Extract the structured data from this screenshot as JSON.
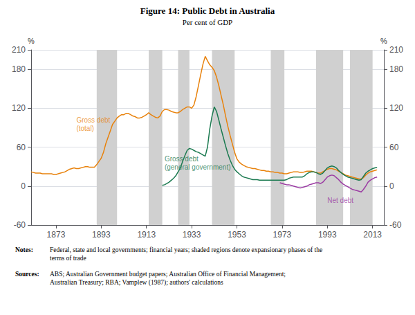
{
  "chart_data": {
    "type": "line",
    "title": "Figure 14: Public Debt in Australia",
    "subtitle": "Per cent of GDP",
    "ylabel": "%",
    "y2label": "%",
    "xlim": [
      1862,
      2018
    ],
    "xticks": [
      1873,
      1893,
      1913,
      1933,
      1953,
      1973,
      1993,
      2013
    ],
    "ylim": [
      -60,
      210
    ],
    "yticks": [
      -60,
      0,
      60,
      120,
      180
    ],
    "y2lim": [
      -60,
      210
    ],
    "y2ticks": [
      -60,
      0,
      60,
      120,
      180
    ],
    "grid": true,
    "shaded_regions": {
      "color": "#D0D0D0",
      "ranges": [
        [
          1891,
          1900
        ],
        [
          1914,
          1920
        ],
        [
          1927,
          1932
        ],
        [
          1942,
          1952
        ],
        [
          1968,
          1974
        ],
        [
          1988,
          2000
        ],
        [
          2003,
          2013
        ]
      ]
    },
    "series": [
      {
        "color": "#E8820C",
        "x": [
          1862,
          1863,
          1864,
          1865,
          1866,
          1867,
          1868,
          1869,
          1870,
          1871,
          1872,
          1873,
          1874,
          1875,
          1876,
          1877,
          1878,
          1879,
          1880,
          1881,
          1882,
          1883,
          1884,
          1885,
          1886,
          1887,
          1888,
          1889,
          1890,
          1891,
          1892,
          1893,
          1894,
          1895,
          1896,
          1897,
          1898,
          1899,
          1900,
          1901,
          1902,
          1903,
          1904,
          1905,
          1906,
          1907,
          1908,
          1909,
          1910,
          1911,
          1912,
          1913,
          1914,
          1915,
          1916,
          1917,
          1918,
          1919,
          1920,
          1921,
          1922,
          1923,
          1924,
          1925,
          1926,
          1927,
          1928,
          1929,
          1930,
          1931,
          1932,
          1933,
          1934,
          1935,
          1936,
          1937,
          1938,
          1939,
          1940,
          1941,
          1942,
          1943,
          1944,
          1945,
          1946,
          1947,
          1948,
          1949,
          1950,
          1951,
          1952,
          1953,
          1954,
          1955,
          1956,
          1957,
          1958,
          1959,
          1960,
          1961,
          1962,
          1963,
          1964,
          1965,
          1966,
          1967,
          1968,
          1969,
          1970,
          1971,
          1972,
          1973,
          1974,
          1975,
          1976,
          1977,
          1978,
          1979,
          1980,
          1981,
          1982,
          1983,
          1984,
          1985,
          1986,
          1987,
          1988,
          1989,
          1990,
          1991,
          1992,
          1993,
          1994,
          1995,
          1996,
          1997,
          1998,
          1999,
          2000,
          2001,
          2002,
          2003,
          2004,
          2005,
          2006,
          2007,
          2008,
          2009,
          2010,
          2011,
          2012,
          2013,
          2014,
          2015
        ],
        "values": [
          22,
          21,
          20,
          20,
          20,
          19,
          19,
          19,
          19,
          19,
          18,
          18,
          19,
          20,
          21,
          22,
          24,
          26,
          27,
          28,
          27,
          27,
          28,
          29,
          30,
          30,
          29,
          29,
          29,
          33,
          38,
          43,
          52,
          65,
          75,
          85,
          95,
          100,
          105,
          108,
          110,
          110,
          112,
          112,
          110,
          108,
          107,
          105,
          105,
          106,
          108,
          110,
          113,
          110,
          108,
          106,
          105,
          108,
          115,
          118,
          118,
          117,
          115,
          114,
          113,
          113,
          115,
          118,
          120,
          122,
          122,
          120,
          125,
          138,
          155,
          172,
          188,
          200,
          193,
          187,
          183,
          178,
          168,
          155,
          140,
          125,
          108,
          92,
          78,
          65,
          52,
          42,
          37,
          34,
          32,
          30,
          29,
          28,
          27,
          27,
          26,
          25,
          24,
          24,
          23,
          23,
          22,
          22,
          21,
          21,
          20,
          20,
          19,
          19,
          20,
          21,
          22,
          22,
          22,
          21,
          21,
          22,
          23,
          23,
          23,
          22,
          21,
          20,
          20,
          22,
          24,
          26,
          27,
          27,
          26,
          25,
          23,
          21,
          19,
          17,
          16,
          15,
          14,
          13,
          12,
          11,
          11,
          13,
          17,
          20,
          22,
          23,
          24,
          25
        ]
      },
      {
        "color": "#1B7A50",
        "x": [
          1920,
          1921,
          1922,
          1923,
          1924,
          1925,
          1926,
          1927,
          1928,
          1929,
          1930,
          1931,
          1932,
          1933,
          1934,
          1935,
          1936,
          1937,
          1938,
          1939,
          1940,
          1941,
          1942,
          1943,
          1944,
          1945,
          1946,
          1947,
          1948,
          1949,
          1950,
          1951,
          1952,
          1953,
          1954,
          1955,
          1956,
          1957,
          1958,
          1959,
          1960,
          1961,
          1962,
          1963,
          1964,
          1965,
          1966,
          1967,
          1968,
          1969,
          1970,
          1971,
          1972,
          1973,
          1974,
          1975,
          1976,
          1977,
          1978,
          1979,
          1980,
          1981,
          1982,
          1983,
          1984,
          1985,
          1986,
          1987,
          1988,
          1989,
          1990,
          1991,
          1992,
          1993,
          1994,
          1995,
          1996,
          1997,
          1998,
          1999,
          2000,
          2001,
          2002,
          2003,
          2004,
          2005,
          2006,
          2007,
          2008,
          2009,
          2010,
          2011,
          2012,
          2013,
          2014,
          2015
        ],
        "values": [
          1,
          2,
          4,
          6,
          9,
          12,
          16,
          22,
          28,
          38,
          47,
          55,
          58,
          57,
          55,
          53,
          52,
          50,
          48,
          46,
          60,
          88,
          108,
          122,
          115,
          102,
          88,
          75,
          62,
          50,
          40,
          32,
          26,
          22,
          19,
          16,
          14,
          13,
          12,
          11,
          10,
          10,
          10,
          9,
          9,
          9,
          9,
          9,
          9,
          9,
          9,
          9,
          9,
          9,
          9,
          10,
          12,
          13,
          14,
          14,
          14,
          14,
          14,
          16,
          19,
          21,
          22,
          22,
          21,
          19,
          18,
          20,
          24,
          28,
          30,
          31,
          30,
          28,
          24,
          21,
          18,
          16,
          14,
          13,
          12,
          11,
          10,
          9,
          10,
          15,
          20,
          23,
          25,
          27,
          28,
          29
        ]
      },
      {
        "color": "#9B3BA3",
        "x": [
          1972,
          1973,
          1974,
          1975,
          1976,
          1977,
          1978,
          1979,
          1980,
          1981,
          1982,
          1983,
          1984,
          1985,
          1986,
          1987,
          1988,
          1989,
          1990,
          1991,
          1992,
          1993,
          1994,
          1995,
          1996,
          1997,
          1998,
          1999,
          2000,
          2001,
          2002,
          2003,
          2004,
          2005,
          2006,
          2007,
          2008,
          2009,
          2010,
          2011,
          2012,
          2013,
          2014,
          2015
        ],
        "values": [
          5,
          4,
          3,
          2,
          2,
          1,
          0,
          -1,
          -2,
          -3,
          -2,
          -1,
          0,
          2,
          3,
          4,
          5,
          5,
          4,
          6,
          10,
          14,
          16,
          17,
          16,
          13,
          10,
          6,
          3,
          1,
          -1,
          -3,
          -5,
          -6,
          -7,
          -8,
          -9,
          -5,
          0,
          6,
          9,
          11,
          13,
          14
        ]
      }
    ],
    "annotations": [
      {
        "text": "Gross debt\n(total)",
        "x": 1882,
        "y": 95,
        "color": "#E8820C"
      },
      {
        "text": "Gross debt\n(general government)",
        "x": 1921,
        "y": 35,
        "color": "#1B7A50"
      },
      {
        "text": "Net debt",
        "x": 1993,
        "y": -22,
        "color": "#9B3BA3"
      }
    ],
    "notes": {
      "label": "Notes:",
      "text": "Federal, state and local governments; financial years; shaded regions denote expansionary phases of the\nterms of trade"
    },
    "sources": {
      "label": "Sources:",
      "text": "ABS; Australian Government budget papers; Australian Office of Financial Management;\nAustralian Treasury; RBA; Vamplew (1987); authors' calculations"
    }
  }
}
